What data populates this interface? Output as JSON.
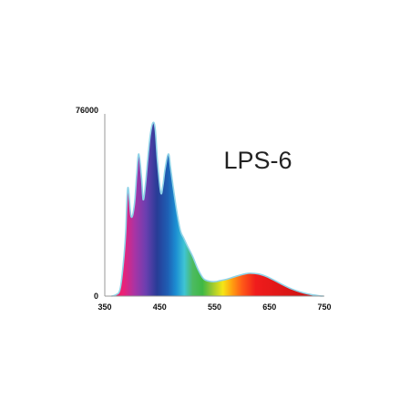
{
  "chart_data": {
    "type": "area",
    "title": "LPS-6",
    "xlabel": "",
    "ylabel": "",
    "xlim": [
      350,
      750
    ],
    "ylim": [
      0,
      76000
    ],
    "x_ticks": [
      "350",
      "450",
      "550",
      "650",
      "750"
    ],
    "x_tick_values": [
      350,
      450,
      550,
      650,
      750
    ],
    "y_ticks": [
      "0",
      "76000"
    ],
    "y_tick_values": [
      0,
      76000
    ],
    "grid": false,
    "legend": "none",
    "fill": "visible-spectrum-gradient",
    "outline_color": "#8fd3e8",
    "axis_color": "#999999",
    "title_color": "#222222",
    "series": [
      {
        "x": [
          362,
          370,
          378,
          384,
          388,
          392,
          398,
          404,
          408,
          412,
          417,
          420,
          424,
          428,
          433,
          438,
          442,
          446,
          452,
          456,
          460,
          466,
          470,
          476,
          482,
          488,
          494,
          500,
          510,
          520,
          530,
          540,
          550,
          560,
          575,
          590,
          605,
          615,
          630,
          645,
          660,
          675,
          690,
          705,
          720,
          735,
          742,
          748
        ],
        "y": [
          0,
          500,
          3000,
          14000,
          26000,
          45000,
          33000,
          38000,
          50000,
          59000,
          49000,
          40000,
          46000,
          56000,
          67000,
          72000,
          69000,
          56000,
          43000,
          46000,
          53000,
          59000,
          53000,
          43000,
          34000,
          27000,
          24000,
          21000,
          16500,
          11000,
          7200,
          6200,
          6000,
          6400,
          7200,
          8300,
          9200,
          9500,
          9200,
          8100,
          6400,
          4600,
          3000,
          1800,
          900,
          300,
          80,
          0
        ]
      }
    ],
    "stops": [
      {
        "nm": 362,
        "color": "#ff1a4e"
      },
      {
        "nm": 385,
        "color": "#e8227a"
      },
      {
        "nm": 405,
        "color": "#a735a6"
      },
      {
        "nm": 425,
        "color": "#6a3fb0"
      },
      {
        "nm": 445,
        "color": "#283c96"
      },
      {
        "nm": 465,
        "color": "#1e5fb4"
      },
      {
        "nm": 480,
        "color": "#1c8fd3"
      },
      {
        "nm": 495,
        "color": "#3fc4d4"
      },
      {
        "nm": 510,
        "color": "#4cba62"
      },
      {
        "nm": 528,
        "color": "#3fb844"
      },
      {
        "nm": 545,
        "color": "#96c832"
      },
      {
        "nm": 565,
        "color": "#f5e616"
      },
      {
        "nm": 582,
        "color": "#ff9f10"
      },
      {
        "nm": 600,
        "color": "#ff5a18"
      },
      {
        "nm": 625,
        "color": "#f01c1c"
      },
      {
        "nm": 700,
        "color": "#d41414"
      },
      {
        "nm": 750,
        "color": "#c01010"
      }
    ]
  }
}
